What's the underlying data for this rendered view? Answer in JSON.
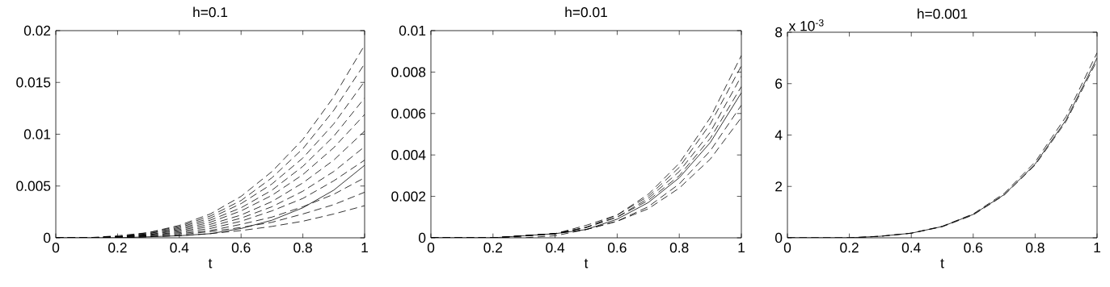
{
  "chart_data": [
    {
      "type": "line",
      "title": "h=0.1",
      "xlabel": "t",
      "x": [
        0,
        0.1,
        0.2,
        0.3,
        0.4,
        0.5,
        0.6,
        0.7,
        0.8,
        0.9,
        1
      ],
      "xlim": [
        0,
        1
      ],
      "ylim": [
        0,
        0.02
      ],
      "xticks": [
        0,
        0.2,
        0.4,
        0.6,
        0.8,
        1
      ],
      "yticks": [
        0,
        0.005,
        0.01,
        0.015,
        0.02
      ],
      "marker": "none",
      "series": [
        {
          "color": "#000000",
          "line_style": "dashed",
          "values": [
            0,
            0,
            0.0002,
            0.0005,
            0.0012,
            0.0023,
            0.004,
            0.0064,
            0.0095,
            0.0136,
            0.0186
          ]
        },
        {
          "color": "#000000",
          "line_style": "dashed",
          "values": [
            0,
            0,
            0.0001,
            0.0005,
            0.0011,
            0.0021,
            0.0036,
            0.0058,
            0.0086,
            0.0123,
            0.0168
          ]
        },
        {
          "color": "#000000",
          "line_style": "dashed",
          "values": [
            0,
            0,
            0.0001,
            0.0004,
            0.001,
            0.0019,
            0.0033,
            0.0052,
            0.0077,
            0.011,
            0.0151
          ]
        },
        {
          "color": "#000000",
          "line_style": "dashed",
          "values": [
            0,
            0,
            0.0001,
            0.0004,
            0.0009,
            0.0017,
            0.0029,
            0.0046,
            0.0069,
            0.0098,
            0.0135
          ]
        },
        {
          "color": "#000000",
          "line_style": "dashed",
          "values": [
            0,
            0,
            0.0001,
            0.0003,
            0.0008,
            0.0015,
            0.0026,
            0.0041,
            0.0061,
            0.0087,
            0.0119
          ]
        },
        {
          "color": "#000000",
          "line_style": "dashed",
          "values": [
            0,
            0,
            0.0001,
            0.0003,
            0.0007,
            0.0013,
            0.0022,
            0.0035,
            0.0053,
            0.0075,
            0.0103
          ]
        },
        {
          "color": "#000000",
          "line_style": "dashed",
          "values": [
            0,
            0,
            0.0001,
            0.0002,
            0.0006,
            0.0011,
            0.0019,
            0.003,
            0.0045,
            0.0064,
            0.0088
          ]
        },
        {
          "color": "#000000",
          "line_style": "dashed",
          "values": [
            0,
            0,
            0.0001,
            0.0002,
            0.0005,
            0.0009,
            0.0016,
            0.0026,
            0.0038,
            0.0055,
            0.0075
          ]
        },
        {
          "color": "#000000",
          "line_style": "dashed",
          "values": [
            0,
            0,
            0,
            0.0002,
            0.0004,
            0.0007,
            0.0013,
            0.002,
            0.003,
            0.0042,
            0.0058
          ]
        },
        {
          "color": "#000000",
          "line_style": "dashed",
          "values": [
            0,
            0,
            0,
            0.0001,
            0.0003,
            0.0006,
            0.001,
            0.0015,
            0.0023,
            0.0032,
            0.0044
          ]
        },
        {
          "color": "#000000",
          "line_style": "dashed",
          "values": [
            0,
            0,
            0,
            0.0001,
            0.0002,
            0.0004,
            0.0007,
            0.0011,
            0.0016,
            0.0023,
            0.0031
          ]
        },
        {
          "color": "#000000",
          "line_style": "solid",
          "values": [
            0,
            0,
            0,
            0.0001,
            0.0002,
            0.0004,
            0.0009,
            0.0017,
            0.0029,
            0.0046,
            0.007
          ]
        }
      ]
    },
    {
      "type": "line",
      "title": "h=0.01",
      "xlabel": "t",
      "x": [
        0,
        0.1,
        0.2,
        0.3,
        0.4,
        0.5,
        0.6,
        0.7,
        0.8,
        0.9,
        1
      ],
      "xlim": [
        0,
        1
      ],
      "ylim": [
        0,
        0.01
      ],
      "xticks": [
        0,
        0.2,
        0.4,
        0.6,
        0.8,
        1
      ],
      "yticks": [
        0,
        0.002,
        0.004,
        0.006,
        0.008,
        0.01
      ],
      "marker": "none",
      "series": [
        {
          "color": "#000000",
          "line_style": "dashed",
          "values": [
            0,
            0,
            0,
            0.0001,
            0.0002,
            0.0006,
            0.0011,
            0.0021,
            0.0036,
            0.0058,
            0.0088
          ]
        },
        {
          "color": "#000000",
          "line_style": "dashed",
          "values": [
            0,
            0,
            0,
            0.0001,
            0.0002,
            0.0005,
            0.0011,
            0.002,
            0.0034,
            0.0055,
            0.0083
          ]
        },
        {
          "color": "#000000",
          "line_style": "dashed",
          "values": [
            0,
            0,
            0,
            0.0001,
            0.0002,
            0.0005,
            0.001,
            0.0019,
            0.0032,
            0.0051,
            0.0078
          ]
        },
        {
          "color": "#000000",
          "line_style": "dashed",
          "values": [
            0,
            0,
            0,
            0.0001,
            0.0002,
            0.0005,
            0.001,
            0.0018,
            0.003,
            0.0048,
            0.0073
          ]
        },
        {
          "color": "#000000",
          "line_style": "dashed",
          "values": [
            0,
            0,
            0,
            0.0001,
            0.0002,
            0.0004,
            0.0008,
            0.0015,
            0.0026,
            0.0042,
            0.0064
          ]
        },
        {
          "color": "#000000",
          "line_style": "dashed",
          "values": [
            0,
            0,
            0,
            0,
            0.0001,
            0.0004,
            0.0008,
            0.0014,
            0.0024,
            0.0038,
            0.0058
          ]
        },
        {
          "color": "#000000",
          "line_style": "solid",
          "values": [
            0,
            0,
            0,
            0.0001,
            0.0002,
            0.0004,
            0.0009,
            0.0017,
            0.0029,
            0.0046,
            0.007
          ]
        }
      ]
    },
    {
      "type": "line",
      "title": "h=0.001",
      "xlabel": "t",
      "annotations": [
        "x 10$^{-3}$"
      ],
      "x": [
        0,
        0.1,
        0.2,
        0.3,
        0.4,
        0.5,
        0.6,
        0.7,
        0.8,
        0.9,
        1
      ],
      "xlim": [
        0,
        1
      ],
      "ylim": [
        0,
        8
      ],
      "xticks": [
        0,
        0.2,
        0.4,
        0.6,
        0.8,
        1
      ],
      "yticks": [
        0,
        2,
        4,
        6,
        8
      ],
      "marker": "none",
      "series": [
        {
          "color": "#000000",
          "line_style": "dashed",
          "values": [
            0,
            0,
            0,
            0.06,
            0.18,
            0.45,
            0.93,
            1.73,
            2.95,
            4.72,
            7.2
          ]
        },
        {
          "color": "#000000",
          "line_style": "dashed",
          "values": [
            0,
            0,
            0,
            0.06,
            0.18,
            0.43,
            0.89,
            1.66,
            2.83,
            4.53,
            6.9
          ]
        },
        {
          "color": "#000000",
          "line_style": "solid",
          "values": [
            0,
            0,
            0,
            0.06,
            0.18,
            0.44,
            0.91,
            1.68,
            2.87,
            4.59,
            7
          ]
        }
      ]
    }
  ]
}
